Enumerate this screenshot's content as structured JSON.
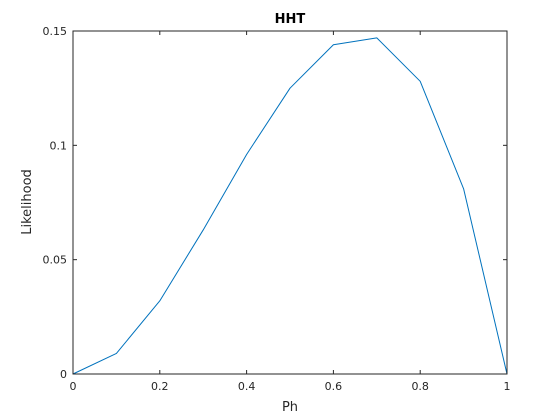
{
  "chart_data": {
    "type": "line",
    "title": "HHT",
    "xlabel": "Ph",
    "ylabel": "Likelihood",
    "xlim": [
      0,
      1
    ],
    "ylim": [
      0,
      0.15
    ],
    "xticks": [
      0,
      0.2,
      0.4,
      0.6,
      0.8,
      1
    ],
    "xtick_labels": [
      "0",
      "0.2",
      "0.4",
      "0.6",
      "0.8",
      "1"
    ],
    "yticks": [
      0,
      0.05,
      0.1,
      0.15
    ],
    "ytick_labels": [
      "0",
      "0.05",
      "0.1",
      "0.15"
    ],
    "grid": false,
    "series": [
      {
        "color": "#0072BD",
        "x": [
          0,
          0.1,
          0.2,
          0.3,
          0.4,
          0.5,
          0.6,
          0.7,
          0.8,
          0.9,
          1.0
        ],
        "y": [
          0,
          0.009,
          0.032,
          0.063,
          0.096,
          0.125,
          0.144,
          0.147,
          0.128,
          0.081,
          0
        ]
      }
    ]
  }
}
